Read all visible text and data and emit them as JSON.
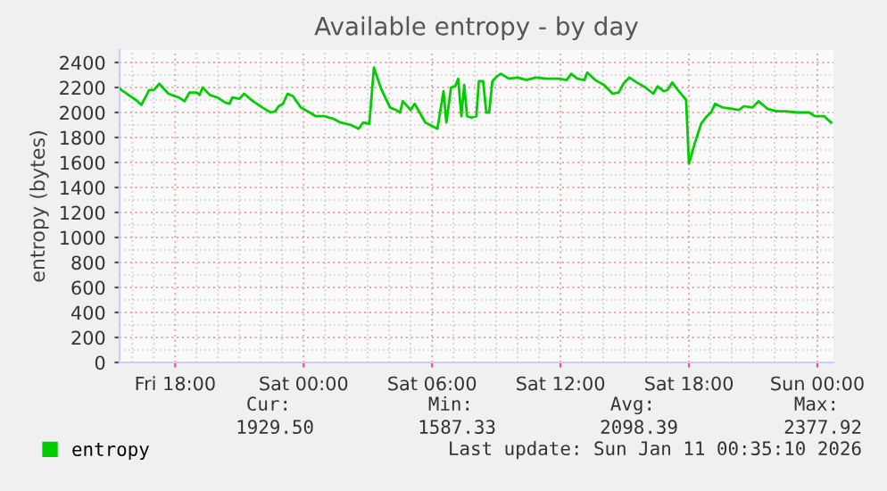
{
  "chart_data": {
    "type": "line",
    "title": "Available entropy - by day",
    "ylabel": "entropy (bytes)",
    "xlim": [
      "2026-01-09T15:24",
      "2026-01-11T00:45"
    ],
    "xticks": [
      {
        "value": "2026-01-09T18:00",
        "label": "Fri 18:00"
      },
      {
        "value": "2026-01-10T00:00",
        "label": "Sat 00:00"
      },
      {
        "value": "2026-01-10T06:00",
        "label": "Sat 06:00"
      },
      {
        "value": "2026-01-10T12:00",
        "label": "Sat 12:00"
      },
      {
        "value": "2026-01-10T18:00",
        "label": "Sat 18:00"
      },
      {
        "value": "2026-01-11T00:00",
        "label": "Sun 00:00"
      }
    ],
    "ylim": [
      0,
      2500
    ],
    "yticks": [
      0,
      200,
      400,
      600,
      800,
      1000,
      1200,
      1400,
      1600,
      1800,
      2000,
      2200,
      2400
    ],
    "grid": true,
    "legend": "bottom",
    "marker": "none",
    "line_style": "solid",
    "series": [
      {
        "name": "entropy",
        "color": "#00cc00",
        "x": [
          "2026-01-09T15:24",
          "2026-01-09T15:49",
          "2026-01-09T16:10",
          "2026-01-09T16:25",
          "2026-01-09T16:47",
          "2026-01-09T17:00",
          "2026-01-09T17:15",
          "2026-01-09T17:41",
          "2026-01-09T18:10",
          "2026-01-09T18:26",
          "2026-01-09T18:40",
          "2026-01-09T19:00",
          "2026-01-09T19:08",
          "2026-01-09T19:17",
          "2026-01-09T19:37",
          "2026-01-09T19:58",
          "2026-01-09T20:20",
          "2026-01-09T20:32",
          "2026-01-09T20:40",
          "2026-01-09T21:00",
          "2026-01-09T21:13",
          "2026-01-09T21:38",
          "2026-01-09T22:04",
          "2026-01-09T22:28",
          "2026-01-09T22:40",
          "2026-01-09T22:50",
          "2026-01-09T23:02",
          "2026-01-09T23:15",
          "2026-01-09T23:30",
          "2026-01-09T23:52",
          "2026-01-10T00:17",
          "2026-01-10T00:34",
          "2026-01-10T00:58",
          "2026-01-10T01:23",
          "2026-01-10T01:43",
          "2026-01-10T02:13",
          "2026-01-10T02:34",
          "2026-01-10T02:47",
          "2026-01-10T03:04",
          "2026-01-10T03:17",
          "2026-01-10T03:37",
          "2026-01-10T04:02",
          "2026-01-10T04:19",
          "2026-01-10T04:30",
          "2026-01-10T04:38",
          "2026-01-10T05:00",
          "2026-01-10T05:11",
          "2026-01-10T05:41",
          "2026-01-10T06:15",
          "2026-01-10T06:32",
          "2026-01-10T06:40",
          "2026-01-10T06:53",
          "2026-01-10T07:05",
          "2026-01-10T07:13",
          "2026-01-10T07:22",
          "2026-01-10T07:30",
          "2026-01-10T07:38",
          "2026-01-10T07:50",
          "2026-01-10T08:04",
          "2026-01-10T08:11",
          "2026-01-10T08:23",
          "2026-01-10T08:32",
          "2026-01-10T08:40",
          "2026-01-10T08:49",
          "2026-01-10T09:02",
          "2026-01-10T09:13",
          "2026-01-10T09:35",
          "2026-01-10T10:00",
          "2026-01-10T10:25",
          "2026-01-10T10:50",
          "2026-01-10T11:23",
          "2026-01-10T11:56",
          "2026-01-10T12:17",
          "2026-01-10T12:30",
          "2026-01-10T12:47",
          "2026-01-10T13:07",
          "2026-01-10T13:15",
          "2026-01-10T13:37",
          "2026-01-10T14:02",
          "2026-01-10T14:26",
          "2026-01-10T14:43",
          "2026-01-10T14:56",
          "2026-01-10T15:13",
          "2026-01-10T15:34",
          "2026-01-10T15:58",
          "2026-01-10T16:20",
          "2026-01-10T16:32",
          "2026-01-10T16:49",
          "2026-01-10T17:00",
          "2026-01-10T17:13",
          "2026-01-10T17:26",
          "2026-01-10T17:52",
          "2026-01-10T18:00",
          "2026-01-10T18:17",
          "2026-01-10T18:34",
          "2026-01-10T18:50",
          "2026-01-10T19:02",
          "2026-01-10T19:13",
          "2026-01-10T19:35",
          "2026-01-10T20:00",
          "2026-01-10T20:20",
          "2026-01-10T20:34",
          "2026-01-10T20:58",
          "2026-01-10T21:15",
          "2026-01-10T21:40",
          "2026-01-10T22:05",
          "2026-01-10T22:30",
          "2026-01-10T23:04",
          "2026-01-10T23:37",
          "2026-01-10T23:53",
          "2026-01-11T00:19",
          "2026-01-11T00:38"
        ],
        "values": [
          2190,
          2140,
          2100,
          2060,
          2180,
          2180,
          2230,
          2150,
          2120,
          2090,
          2160,
          2160,
          2140,
          2200,
          2140,
          2120,
          2080,
          2070,
          2120,
          2110,
          2150,
          2090,
          2040,
          2000,
          2010,
          2050,
          2070,
          2150,
          2130,
          2040,
          2000,
          1970,
          1970,
          1950,
          1920,
          1900,
          1870,
          1920,
          1910,
          2360,
          2190,
          2040,
          2020,
          2000,
          2090,
          2020,
          2070,
          1920,
          1870,
          2170,
          1920,
          2200,
          2210,
          2270,
          1970,
          2220,
          1970,
          1960,
          1970,
          2250,
          2250,
          2000,
          2000,
          2250,
          2290,
          2310,
          2270,
          2280,
          2260,
          2280,
          2270,
          2270,
          2260,
          2310,
          2270,
          2260,
          2320,
          2260,
          2220,
          2150,
          2160,
          2230,
          2280,
          2240,
          2200,
          2150,
          2210,
          2170,
          2180,
          2240,
          2190,
          2100,
          1590,
          1760,
          1910,
          1970,
          2000,
          2070,
          2040,
          2030,
          2020,
          2050,
          2040,
          2090,
          2030,
          2010,
          2010,
          2000,
          2000,
          1970,
          1970,
          1920
        ]
      }
    ],
    "annotations": [
      "Cur:",
      "1929.50",
      "Min:",
      "1587.33",
      "Avg:",
      "2098.39",
      "Max:",
      "2377.92",
      "Last update: Sun Jan 11 00:35:10 2026"
    ]
  }
}
